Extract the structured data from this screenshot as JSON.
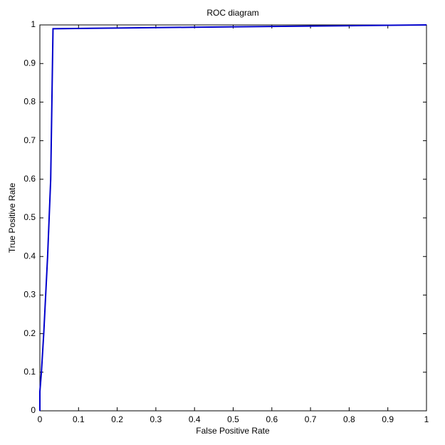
{
  "chart_data": {
    "type": "line",
    "title": "ROC diagram",
    "x_label": "False Positive Rate",
    "y_label": "True Positive Rate",
    "series": [
      {
        "color": "#0000cc",
        "x": [
          0,
          0,
          0.004,
          0.01,
          0.02,
          0.028,
          0.034,
          0.2,
          0.4,
          0.6,
          0.8,
          1
        ],
        "values": [
          0,
          0.05,
          0.1,
          0.2,
          0.4,
          0.6,
          0.99,
          0.992,
          0.994,
          0.996,
          0.998,
          1
        ]
      }
    ],
    "xlim": [
      0,
      1
    ],
    "ylim": [
      0,
      1
    ],
    "xticks": [
      0,
      0.1,
      0.2,
      0.3,
      0.4,
      0.5,
      0.6,
      0.7,
      0.8,
      0.9,
      1
    ],
    "yticks": [
      0,
      0.1,
      0.2,
      0.3,
      0.4,
      0.5,
      0.6,
      0.7,
      0.8,
      0.9,
      1
    ]
  }
}
